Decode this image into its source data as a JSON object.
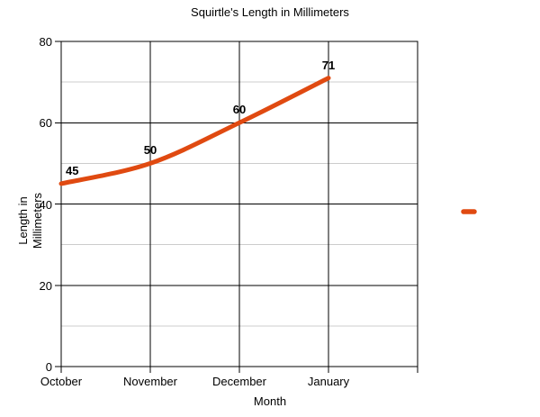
{
  "chart_data": {
    "type": "line",
    "title": "Squirtle's Length in Millimeters",
    "xlabel": "Month",
    "ylabel": "Length in Millimeters",
    "categories": [
      "October",
      "November",
      "December",
      "January"
    ],
    "series": [
      {
        "name": "",
        "color": "#e04a11",
        "values": [
          45,
          50,
          60,
          71
        ]
      }
    ],
    "data_labels": [
      "45",
      "50",
      "60",
      "71"
    ],
    "ylim": [
      0,
      80
    ],
    "yticks_major": [
      0,
      20,
      40,
      60,
      80
    ],
    "yticks_minor": [
      10,
      30,
      50,
      70
    ],
    "grid": {
      "major_color": "#000000",
      "minor_color": "#cccccc"
    },
    "legend_position": "right",
    "smooth_line": true,
    "colors": {
      "background": "#ffffff",
      "text": "#000000"
    }
  }
}
